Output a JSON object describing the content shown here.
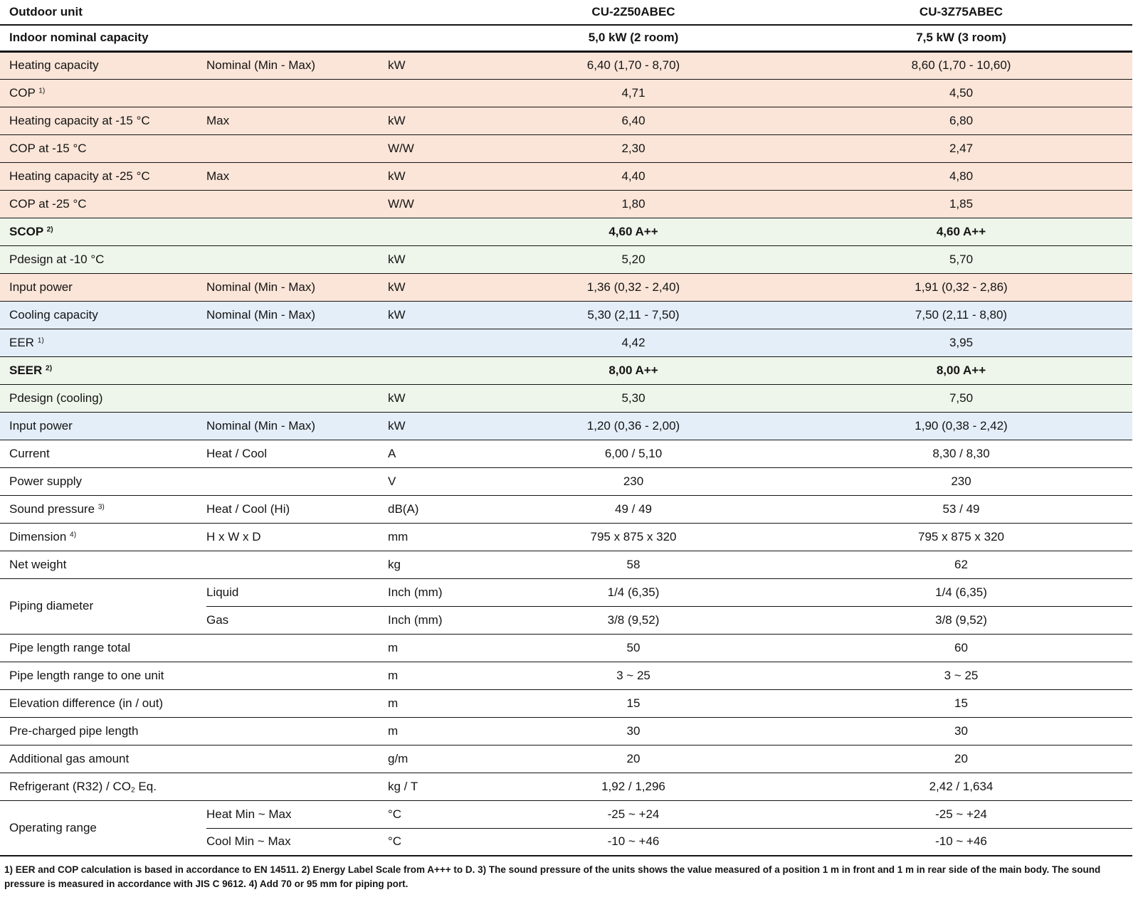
{
  "colors": {
    "heating_row": "#fbe5d8",
    "efficiency_row": "#eef5ea",
    "cooling_row": "#e4eef8",
    "line": "#141414"
  },
  "table": {
    "header": {
      "outdoor_unit_label": "Outdoor unit",
      "models": [
        "CU-2Z50ABEC",
        "CU-3Z75ABEC"
      ],
      "indoor_capacity_label": "Indoor nominal capacity",
      "capacities": [
        "5,0 kW (2 room)",
        "7,5 kW (3 room)"
      ]
    },
    "rows": [
      {
        "label": [
          {
            "t": "Heating capacity"
          }
        ],
        "sub": "Nominal (Min - Max)",
        "unit": "kW",
        "v1": "6,40 (1,70 - 8,70)",
        "v2": "8,60 (1,70 - 10,60)",
        "bg": "heating",
        "bold": false
      },
      {
        "label": [
          {
            "t": "COP "
          },
          {
            "t": "1)",
            "s": "sup"
          }
        ],
        "sub": "",
        "unit": "",
        "v1": "4,71",
        "v2": "4,50",
        "bg": "heating",
        "bold": false
      },
      {
        "label": [
          {
            "t": "Heating capacity at -15 °C"
          }
        ],
        "sub": "Max",
        "unit": "kW",
        "v1": "6,40",
        "v2": "6,80",
        "bg": "heating",
        "bold": false
      },
      {
        "label": [
          {
            "t": "COP at -15 °C"
          }
        ],
        "sub": "",
        "unit": "W/W",
        "v1": "2,30",
        "v2": "2,47",
        "bg": "heating",
        "bold": false
      },
      {
        "label": [
          {
            "t": "Heating capacity at -25 °C"
          }
        ],
        "sub": "Max",
        "unit": "kW",
        "v1": "4,40",
        "v2": "4,80",
        "bg": "heating",
        "bold": false
      },
      {
        "label": [
          {
            "t": "COP at -25 °C"
          }
        ],
        "sub": "",
        "unit": "W/W",
        "v1": "1,80",
        "v2": "1,85",
        "bg": "heating",
        "bold": false
      },
      {
        "label": [
          {
            "t": "SCOP "
          },
          {
            "t": "2)",
            "s": "sup"
          }
        ],
        "sub": "",
        "unit": "",
        "v1": "4,60 A++",
        "v2": "4,60 A++",
        "bg": "efficiency",
        "bold": true
      },
      {
        "label": [
          {
            "t": "Pdesign at -10 °C"
          }
        ],
        "sub": "",
        "unit": "kW",
        "v1": "5,20",
        "v2": "5,70",
        "bg": "efficiency",
        "bold": false
      },
      {
        "label": [
          {
            "t": "Input power"
          }
        ],
        "sub": "Nominal (Min - Max)",
        "unit": "kW",
        "v1": "1,36 (0,32 - 2,40)",
        "v2": "1,91 (0,32 - 2,86)",
        "bg": "heating",
        "bold": false
      },
      {
        "label": [
          {
            "t": "Cooling capacity"
          }
        ],
        "sub": "Nominal (Min - Max)",
        "unit": "kW",
        "v1": "5,30 (2,11 - 7,50)",
        "v2": "7,50 (2,11 - 8,80)",
        "bg": "cooling",
        "bold": false
      },
      {
        "label": [
          {
            "t": "EER "
          },
          {
            "t": "1)",
            "s": "sup"
          }
        ],
        "sub": "",
        "unit": "",
        "v1": "4,42",
        "v2": "3,95",
        "bg": "cooling",
        "bold": false
      },
      {
        "label": [
          {
            "t": "SEER "
          },
          {
            "t": "2)",
            "s": "sup"
          }
        ],
        "sub": "",
        "unit": "",
        "v1": "8,00 A++",
        "v2": "8,00 A++",
        "bg": "efficiency",
        "bold": true
      },
      {
        "label": [
          {
            "t": "Pdesign (cooling)"
          }
        ],
        "sub": "",
        "unit": "kW",
        "v1": "5,30",
        "v2": "7,50",
        "bg": "efficiency",
        "bold": false
      },
      {
        "label": [
          {
            "t": "Input power"
          }
        ],
        "sub": "Nominal (Min - Max)",
        "unit": "kW",
        "v1": "1,20 (0,36 - 2,00)",
        "v2": "1,90 (0,38 - 2,42)",
        "bg": "cooling",
        "bold": false
      },
      {
        "label": [
          {
            "t": "Current"
          }
        ],
        "sub": "Heat / Cool",
        "unit": "A",
        "v1": "6,00 / 5,10",
        "v2": "8,30 / 8,30",
        "bg": "none",
        "bold": false
      },
      {
        "label": [
          {
            "t": "Power supply"
          }
        ],
        "sub": "",
        "unit": "V",
        "v1": "230",
        "v2": "230",
        "bg": "none",
        "bold": false
      },
      {
        "label": [
          {
            "t": "Sound pressure "
          },
          {
            "t": "3)",
            "s": "sup"
          }
        ],
        "sub": "Heat / Cool (Hi)",
        "unit": "dB(A)",
        "v1": "49 / 49",
        "v2": "53 / 49",
        "bg": "none",
        "bold": false
      },
      {
        "label": [
          {
            "t": "Dimension "
          },
          {
            "t": "4)",
            "s": "sup"
          }
        ],
        "sub": "H x W x D",
        "unit": "mm",
        "v1": "795 x 875 x 320",
        "v2": "795 x 875 x 320",
        "bg": "none",
        "bold": false
      },
      {
        "label": [
          {
            "t": "Net weight"
          }
        ],
        "sub": "",
        "unit": "kg",
        "v1": "58",
        "v2": "62",
        "bg": "none",
        "bold": false
      },
      {
        "label": [
          {
            "t": "Piping diameter"
          }
        ],
        "rowspan": 2,
        "sub": "Liquid",
        "unit": "Inch (mm)",
        "v1": "1/4 (6,35)",
        "v2": "1/4 (6,35)",
        "bg": "none",
        "bold": false
      },
      {
        "in_span": true,
        "sub": "Gas",
        "unit": "Inch (mm)",
        "v1": "3/8 (9,52)",
        "v2": "3/8 (9,52)",
        "bg": "none",
        "bold": false
      },
      {
        "label": [
          {
            "t": "Pipe length range total"
          }
        ],
        "sub": "",
        "unit": "m",
        "v1": "50",
        "v2": "60",
        "bg": "none",
        "bold": false
      },
      {
        "label": [
          {
            "t": "Pipe length range to one unit"
          }
        ],
        "sub": "",
        "unit": "m",
        "v1": "3 ~ 25",
        "v2": "3 ~ 25",
        "bg": "none",
        "bold": false
      },
      {
        "label": [
          {
            "t": "Elevation difference (in / out)"
          }
        ],
        "sub": "",
        "unit": "m",
        "v1": "15",
        "v2": "15",
        "bg": "none",
        "bold": false
      },
      {
        "label": [
          {
            "t": "Pre-charged pipe length"
          }
        ],
        "sub": "",
        "unit": "m",
        "v1": "30",
        "v2": "30",
        "bg": "none",
        "bold": false
      },
      {
        "label": [
          {
            "t": "Additional gas amount"
          }
        ],
        "sub": "",
        "unit": "g/m",
        "v1": "20",
        "v2": "20",
        "bg": "none",
        "bold": false
      },
      {
        "label": [
          {
            "t": "Refrigerant (R32) / CO"
          },
          {
            "t": "2",
            "s": "sub"
          },
          {
            "t": " Eq."
          }
        ],
        "sub": "",
        "unit": "kg / T",
        "v1": "1,92 / 1,296",
        "v2": "2,42 / 1,634",
        "bg": "none",
        "bold": false
      },
      {
        "label": [
          {
            "t": "Operating range"
          }
        ],
        "rowspan": 2,
        "sub": "Heat Min ~ Max",
        "unit": "°C",
        "v1": "-25 ~ +24",
        "v2": "-25 ~ +24",
        "bg": "none",
        "bold": false
      },
      {
        "in_span": true,
        "sub": "Cool Min ~ Max",
        "unit": "°C",
        "v1": "-10 ~ +46",
        "v2": "-10 ~ +46",
        "bg": "none",
        "bold": false
      }
    ]
  },
  "footnote": "1) EER and COP calculation is based in accordance to EN 14511. 2) Energy Label Scale from A+++ to D. 3) The sound pressure of the units shows the value measured of a position 1 m in front and 1 m in rear side of the main body. The sound pressure is measured in accordance with JIS C 9612. 4) Add 70 or 95 mm for piping port."
}
